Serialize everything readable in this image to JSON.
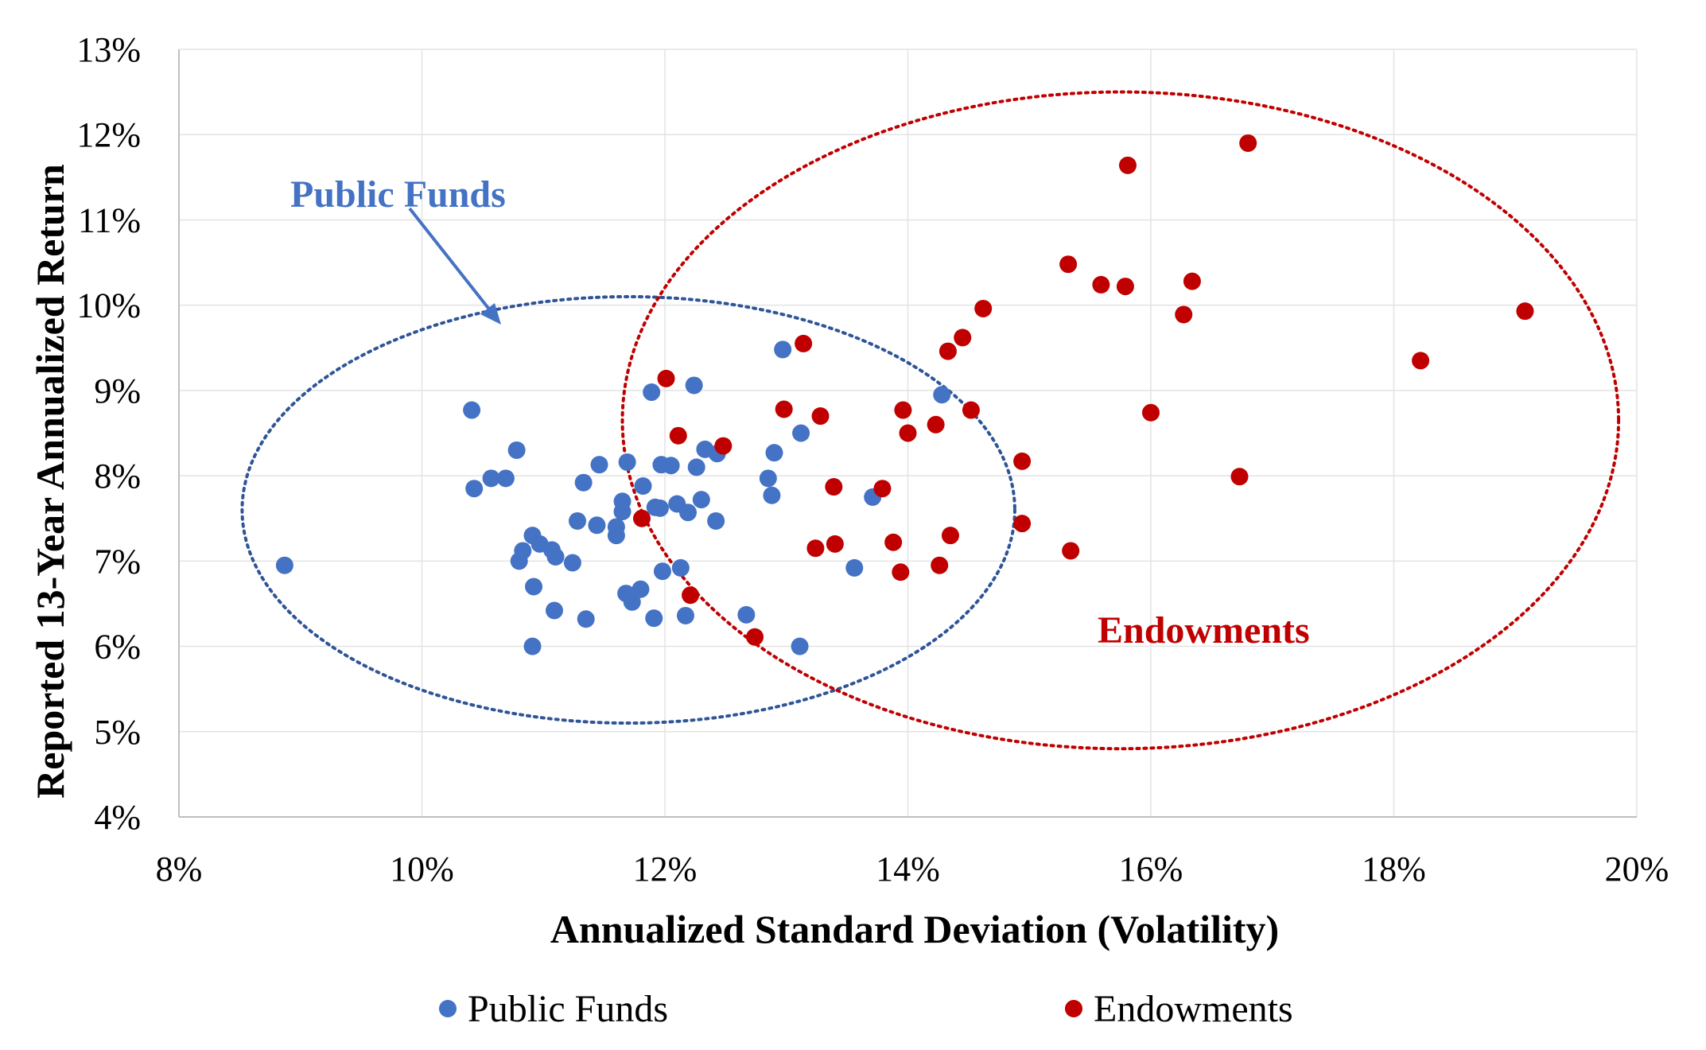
{
  "chart_data": {
    "type": "scatter",
    "xlabel": "Annualized Standard Deviation (Volatility)",
    "ylabel": "Reported 13-Year Annualized Return",
    "xlim": [
      8,
      20
    ],
    "ylim": [
      4,
      13
    ],
    "x_ticks": [
      "8%",
      "10%",
      "12%",
      "14%",
      "16%",
      "18%",
      "20%"
    ],
    "y_ticks": [
      "4%",
      "5%",
      "6%",
      "7%",
      "8%",
      "9%",
      "10%",
      "11%",
      "12%",
      "13%"
    ],
    "grid": true,
    "legend_position": "bottom",
    "series": [
      {
        "name": "Public Funds",
        "color": "#4472C4",
        "points": [
          [
            8.87,
            6.95
          ],
          [
            10.41,
            8.77
          ],
          [
            10.43,
            7.85
          ],
          [
            10.57,
            7.97
          ],
          [
            10.69,
            7.97
          ],
          [
            10.78,
            8.3
          ],
          [
            10.8,
            7.0
          ],
          [
            10.83,
            7.12
          ],
          [
            10.91,
            7.3
          ],
          [
            10.97,
            7.2
          ],
          [
            11.07,
            7.13
          ],
          [
            11.1,
            7.05
          ],
          [
            10.92,
            6.7
          ],
          [
            11.09,
            6.42
          ],
          [
            10.91,
            6.0
          ],
          [
            11.24,
            6.98
          ],
          [
            11.28,
            7.47
          ],
          [
            11.33,
            7.92
          ],
          [
            11.35,
            6.32
          ],
          [
            11.44,
            7.42
          ],
          [
            11.46,
            8.13
          ],
          [
            11.6,
            7.4
          ],
          [
            11.6,
            7.3
          ],
          [
            11.65,
            7.7
          ],
          [
            11.65,
            7.58
          ],
          [
            11.69,
            8.16
          ],
          [
            11.68,
            6.62
          ],
          [
            11.73,
            6.52
          ],
          [
            11.8,
            6.67
          ],
          [
            11.82,
            7.88
          ],
          [
            11.89,
            8.98
          ],
          [
            11.91,
            6.33
          ],
          [
            11.92,
            7.63
          ],
          [
            11.96,
            7.62
          ],
          [
            11.97,
            8.13
          ],
          [
            11.98,
            6.88
          ],
          [
            12.05,
            8.12
          ],
          [
            12.1,
            7.67
          ],
          [
            12.13,
            6.92
          ],
          [
            12.17,
            6.36
          ],
          [
            12.19,
            7.57
          ],
          [
            12.24,
            9.06
          ],
          [
            12.26,
            8.1
          ],
          [
            12.3,
            7.72
          ],
          [
            12.33,
            8.31
          ],
          [
            12.43,
            8.26
          ],
          [
            12.42,
            7.47
          ],
          [
            12.67,
            6.37
          ],
          [
            12.85,
            7.97
          ],
          [
            12.88,
            7.77
          ],
          [
            12.9,
            8.27
          ],
          [
            12.97,
            9.48
          ],
          [
            13.12,
            8.5
          ],
          [
            13.11,
            6.0
          ],
          [
            13.56,
            6.92
          ],
          [
            13.71,
            7.75
          ],
          [
            14.28,
            8.95
          ]
        ]
      },
      {
        "name": "Endowments",
        "color": "#C00000",
        "points": [
          [
            11.81,
            7.5
          ],
          [
            12.01,
            9.14
          ],
          [
            12.11,
            8.47
          ],
          [
            12.21,
            6.6
          ],
          [
            12.48,
            8.35
          ],
          [
            12.74,
            6.11
          ],
          [
            12.98,
            8.78
          ],
          [
            13.14,
            9.55
          ],
          [
            13.24,
            7.15
          ],
          [
            13.28,
            8.7
          ],
          [
            13.39,
            7.87
          ],
          [
            13.4,
            7.2
          ],
          [
            13.79,
            7.85
          ],
          [
            13.88,
            7.22
          ],
          [
            13.94,
            6.87
          ],
          [
            13.96,
            8.77
          ],
          [
            14.0,
            8.5
          ],
          [
            14.23,
            8.6
          ],
          [
            14.26,
            6.95
          ],
          [
            14.33,
            9.46
          ],
          [
            14.35,
            7.3
          ],
          [
            14.45,
            9.62
          ],
          [
            14.52,
            8.77
          ],
          [
            14.62,
            9.96
          ],
          [
            14.94,
            8.17
          ],
          [
            14.94,
            7.44
          ],
          [
            15.32,
            10.48
          ],
          [
            15.34,
            7.12
          ],
          [
            15.59,
            10.24
          ],
          [
            15.79,
            10.22
          ],
          [
            15.81,
            11.64
          ],
          [
            16.0,
            8.74
          ],
          [
            16.27,
            9.89
          ],
          [
            16.34,
            10.28
          ],
          [
            16.73,
            7.99
          ],
          [
            16.8,
            11.9
          ],
          [
            18.22,
            9.35
          ],
          [
            19.08,
            9.93
          ]
        ]
      }
    ],
    "annotations": [
      {
        "text": "Public Funds",
        "color": "#4472C4"
      },
      {
        "text": "Endowments",
        "color": "#C00000"
      }
    ]
  }
}
